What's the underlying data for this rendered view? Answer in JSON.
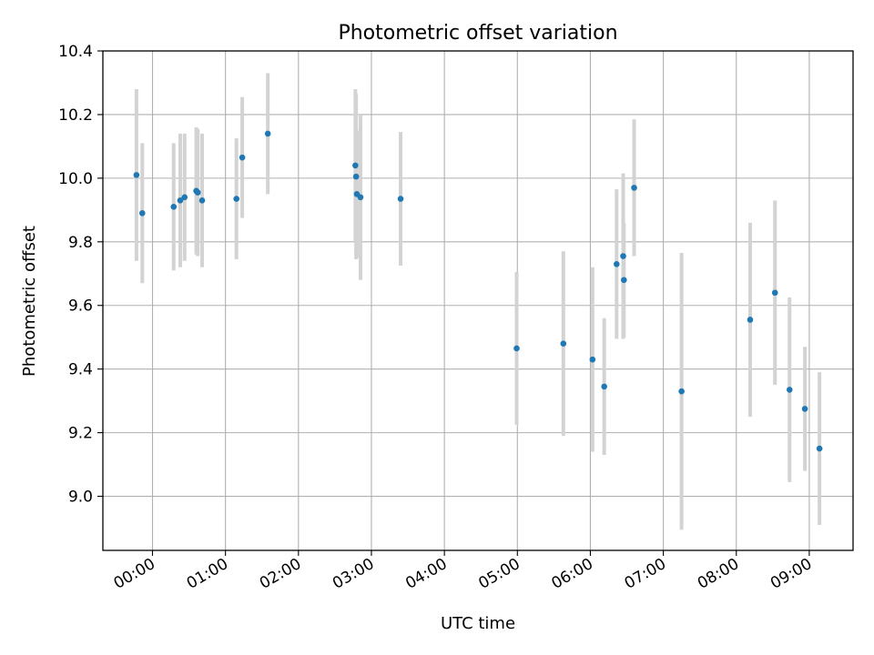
{
  "chart_data": {
    "type": "scatter",
    "title": "Photometric offset variation",
    "xlabel": "UTC time",
    "ylabel": "Photometric offset",
    "x_unit": "hours",
    "xlim": [
      -0.68,
      9.6
    ],
    "ylim": [
      8.83,
      10.4
    ],
    "grid": true,
    "x_ticks": [
      {
        "value": 0,
        "label": "00:00"
      },
      {
        "value": 1,
        "label": "01:00"
      },
      {
        "value": 2,
        "label": "02:00"
      },
      {
        "value": 3,
        "label": "03:00"
      },
      {
        "value": 4,
        "label": "04:00"
      },
      {
        "value": 5,
        "label": "05:00"
      },
      {
        "value": 6,
        "label": "06:00"
      },
      {
        "value": 7,
        "label": "07:00"
      },
      {
        "value": 8,
        "label": "08:00"
      },
      {
        "value": 9,
        "label": "09:00"
      }
    ],
    "y_ticks": [
      {
        "value": 9.0,
        "label": "9.0"
      },
      {
        "value": 9.2,
        "label": "9.2"
      },
      {
        "value": 9.4,
        "label": "9.4"
      },
      {
        "value": 9.6,
        "label": "9.6"
      },
      {
        "value": 9.8,
        "label": "9.8"
      },
      {
        "value": 10.0,
        "label": "10.0"
      },
      {
        "value": 10.2,
        "label": "10.2"
      },
      {
        "value": 10.4,
        "label": "10.4"
      }
    ],
    "colors": {
      "point": "#1f77b4",
      "errorbar": "#d3d3d3",
      "grid": "#b0b0b0"
    },
    "points": [
      {
        "x": -0.22,
        "y": 10.01,
        "yerr": 0.27
      },
      {
        "x": -0.14,
        "y": 9.89,
        "yerr": 0.22
      },
      {
        "x": 0.29,
        "y": 9.91,
        "yerr": 0.2
      },
      {
        "x": 0.38,
        "y": 9.93,
        "yerr": 0.21
      },
      {
        "x": 0.44,
        "y": 9.94,
        "yerr": 0.2
      },
      {
        "x": 0.6,
        "y": 9.96,
        "yerr": 0.2
      },
      {
        "x": 0.62,
        "y": 9.955,
        "yerr": 0.2
      },
      {
        "x": 0.68,
        "y": 9.93,
        "yerr": 0.21
      },
      {
        "x": 1.15,
        "y": 9.935,
        "yerr": 0.19
      },
      {
        "x": 1.23,
        "y": 10.065,
        "yerr": 0.19
      },
      {
        "x": 1.58,
        "y": 10.14,
        "yerr": 0.19
      },
      {
        "x": 2.78,
        "y": 10.04,
        "yerr": 0.24
      },
      {
        "x": 2.79,
        "y": 10.005,
        "yerr": 0.26
      },
      {
        "x": 2.8,
        "y": 9.95,
        "yerr": 0.2
      },
      {
        "x": 2.85,
        "y": 9.94,
        "yerr": 0.26
      },
      {
        "x": 3.4,
        "y": 9.935,
        "yerr": 0.21
      },
      {
        "x": 4.99,
        "y": 9.465,
        "yerr": 0.24
      },
      {
        "x": 5.63,
        "y": 9.48,
        "yerr": 0.29
      },
      {
        "x": 6.03,
        "y": 9.43,
        "yerr": 0.29
      },
      {
        "x": 6.19,
        "y": 9.345,
        "yerr": 0.215
      },
      {
        "x": 6.36,
        "y": 9.73,
        "yerr": 0.235
      },
      {
        "x": 6.45,
        "y": 9.755,
        "yerr": 0.26
      },
      {
        "x": 6.46,
        "y": 9.68,
        "yerr": 0.18
      },
      {
        "x": 6.6,
        "y": 9.97,
        "yerr": 0.215
      },
      {
        "x": 7.25,
        "y": 9.33,
        "yerr": 0.435
      },
      {
        "x": 8.19,
        "y": 9.555,
        "yerr": 0.305
      },
      {
        "x": 8.53,
        "y": 9.64,
        "yerr": 0.29
      },
      {
        "x": 8.73,
        "y": 9.335,
        "yerr": 0.29
      },
      {
        "x": 8.94,
        "y": 9.275,
        "yerr": 0.195
      },
      {
        "x": 9.14,
        "y": 9.15,
        "yerr": 0.24
      }
    ]
  }
}
